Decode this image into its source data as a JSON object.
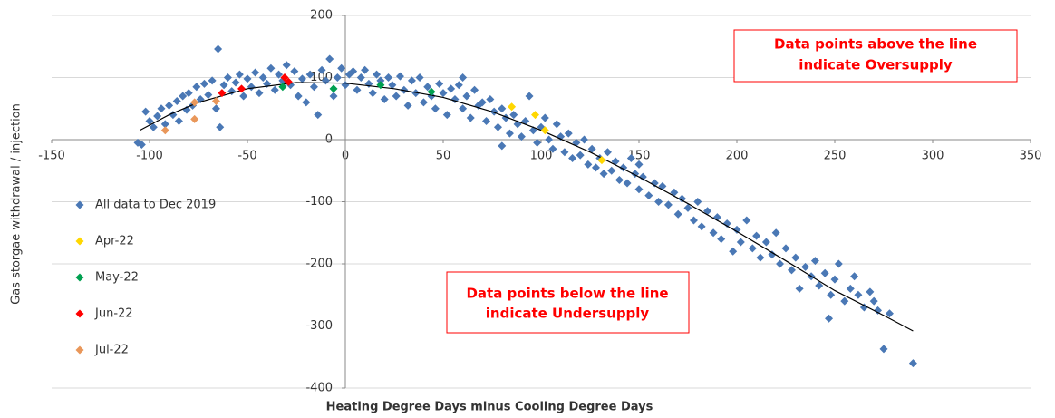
{
  "chart_data": {
    "type": "scatter",
    "x_label": "Heating Degree Days minus Cooling Degree Days",
    "y_label": "Gas storgae withdrawal / injection",
    "xlim": [
      -150,
      350
    ],
    "xticks": [
      -150,
      -100,
      -50,
      0,
      50,
      100,
      150,
      200,
      250,
      300,
      350
    ],
    "ylim": [
      -400,
      200
    ],
    "yticks": [
      -400,
      -300,
      -200,
      -100,
      0,
      100,
      200
    ],
    "grid": true,
    "legend": "left",
    "annotations": [
      [
        "Data points above the line",
        "indicate Oversupply"
      ],
      [
        "Data points below the line",
        "indicate Undersupply"
      ]
    ],
    "trendline": {
      "color": "#000000",
      "x": [
        -105,
        -90,
        -75,
        -50,
        -25,
        0,
        25,
        50,
        75,
        100,
        125,
        150,
        175,
        200,
        225,
        250,
        275,
        290
      ],
      "values": [
        15,
        40,
        60,
        82,
        92,
        91,
        82,
        68,
        45,
        15,
        -20,
        -60,
        -103,
        -148,
        -195,
        -243,
        -283,
        -308
      ]
    },
    "series": [
      {
        "name": "All data to Dec 2019",
        "color": "#4a78b5",
        "x": [
          -106,
          -104,
          -102,
          -100,
          -98,
          -96,
          -94,
          -92,
          -90,
          -88,
          -86,
          -85,
          -83,
          -81,
          -80,
          -78,
          -76,
          -74,
          -72,
          -70,
          -68,
          -66,
          -65,
          -64,
          -62,
          -60,
          -58,
          -56,
          -54,
          -52,
          -50,
          -48,
          -46,
          -44,
          -42,
          -40,
          -38,
          -36,
          -34,
          -32,
          -30,
          -28,
          -26,
          -24,
          -22,
          -20,
          -18,
          -16,
          -14,
          -12,
          -10,
          -8,
          -6,
          -4,
          -2,
          0,
          2,
          4,
          6,
          8,
          10,
          12,
          14,
          16,
          18,
          20,
          22,
          24,
          26,
          28,
          30,
          32,
          34,
          36,
          38,
          40,
          42,
          44,
          46,
          48,
          50,
          52,
          54,
          56,
          58,
          60,
          62,
          64,
          66,
          68,
          70,
          72,
          74,
          76,
          78,
          80,
          82,
          84,
          86,
          88,
          90,
          92,
          94,
          96,
          98,
          100,
          102,
          104,
          106,
          108,
          110,
          112,
          114,
          116,
          118,
          120,
          122,
          124,
          126,
          128,
          130,
          132,
          134,
          136,
          138,
          140,
          142,
          144,
          146,
          148,
          150,
          152,
          155,
          158,
          160,
          162,
          165,
          168,
          170,
          172,
          175,
          178,
          180,
          182,
          185,
          188,
          190,
          192,
          195,
          198,
          200,
          202,
          205,
          208,
          210,
          212,
          215,
          218,
          220,
          222,
          225,
          228,
          230,
          232,
          235,
          238,
          240,
          242,
          245,
          248,
          250,
          252,
          255,
          258,
          260,
          262,
          265,
          268,
          270,
          272,
          275,
          278,
          290,
          247,
          80,
          150,
          60
        ],
        "values": [
          -5,
          -8,
          45,
          30,
          20,
          38,
          50,
          25,
          55,
          40,
          62,
          30,
          70,
          48,
          75,
          55,
          85,
          65,
          90,
          72,
          95,
          50,
          146,
          20,
          88,
          100,
          78,
          92,
          105,
          70,
          98,
          85,
          108,
          75,
          100,
          90,
          115,
          80,
          105,
          95,
          120,
          88,
          110,
          70,
          98,
          60,
          105,
          85,
          40,
          112,
          95,
          130,
          70,
          100,
          115,
          88,
          105,
          110,
          80,
          100,
          112,
          90,
          75,
          105,
          95,
          65,
          100,
          88,
          70,
          102,
          80,
          55,
          95,
          75,
          100,
          60,
          85,
          70,
          50,
          90,
          75,
          40,
          82,
          65,
          88,
          50,
          70,
          35,
          80,
          55,
          60,
          30,
          65,
          45,
          20,
          50,
          35,
          10,
          40,
          25,
          5,
          30,
          70,
          15,
          -5,
          20,
          35,
          0,
          -15,
          25,
          5,
          -20,
          10,
          -30,
          -5,
          -25,
          0,
          -40,
          -15,
          -45,
          -30,
          -55,
          -20,
          -50,
          -35,
          -65,
          -45,
          -70,
          -30,
          -55,
          -80,
          -60,
          -90,
          -70,
          -100,
          -75,
          -105,
          -85,
          -120,
          -95,
          -110,
          -130,
          -100,
          -140,
          -115,
          -150,
          -125,
          -160,
          -135,
          -180,
          -145,
          -165,
          -130,
          -175,
          -155,
          -190,
          -165,
          -185,
          -150,
          -200,
          -175,
          -210,
          -190,
          -240,
          -205,
          -220,
          -195,
          -235,
          -215,
          -250,
          -225,
          -200,
          -260,
          -240,
          -220,
          -250,
          -270,
          -245,
          -260,
          -275,
          -337,
          -280,
          -360,
          -288,
          -10,
          -40,
          100
        ]
      },
      {
        "name": "Apr-22",
        "color": "#ffd700",
        "x": [
          85,
          97,
          102,
          131
        ],
        "values": [
          53,
          40,
          15,
          -33
        ]
      },
      {
        "name": "May-22",
        "color": "#00a050",
        "x": [
          -32,
          -6,
          18,
          44
        ],
        "values": [
          85,
          82,
          88,
          77
        ]
      },
      {
        "name": "Jun-22",
        "color": "#ff0000",
        "x": [
          -63,
          -53,
          -31,
          -29
        ],
        "values": [
          75,
          82,
          100,
          93
        ]
      },
      {
        "name": "Jul-22",
        "color": "#e9975a",
        "x": [
          -92,
          -77,
          -77,
          -66
        ],
        "values": [
          15,
          33,
          60,
          62
        ]
      }
    ]
  }
}
